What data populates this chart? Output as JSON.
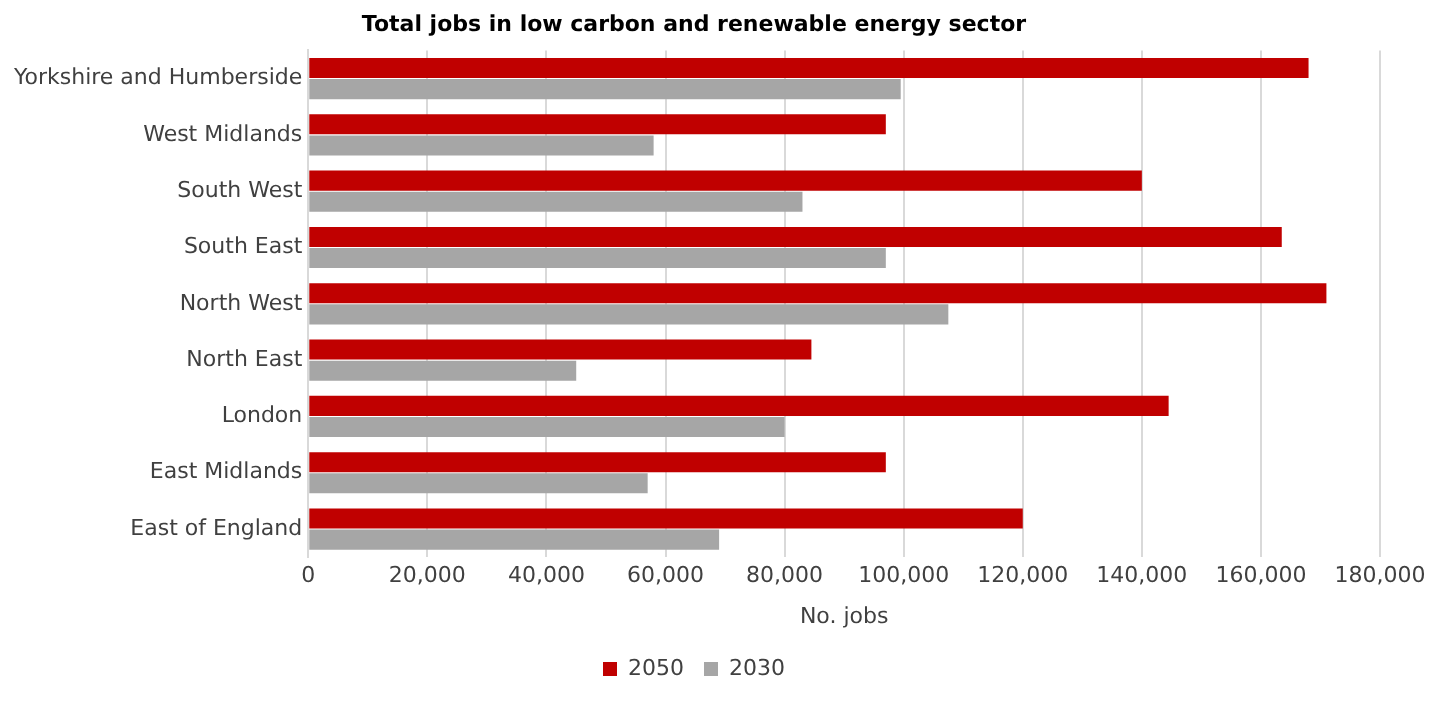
{
  "chart_data": {
    "type": "bar",
    "orientation": "horizontal",
    "title": "Total jobs in low carbon and renewable energy sector",
    "xlabel": "No. jobs",
    "categories": [
      "Yorkshire and Humberside",
      "West Midlands",
      "South West",
      "South East",
      "North West",
      "North East",
      "London",
      "East Midlands",
      "East of England"
    ],
    "series": [
      {
        "name": "2050",
        "color": "#c00000",
        "values": [
          168000,
          97000,
          140000,
          163500,
          171000,
          84500,
          144500,
          97000,
          120000
        ]
      },
      {
        "name": "2030",
        "color": "#a6a6a6",
        "values": [
          99500,
          58000,
          83000,
          97000,
          107500,
          45000,
          80000,
          57000,
          69000
        ]
      }
    ],
    "xlim": [
      0,
      180000
    ],
    "xticks": [
      {
        "value": 0,
        "label": "0"
      },
      {
        "value": 20000,
        "label": "20,000"
      },
      {
        "value": 40000,
        "label": "40,000"
      },
      {
        "value": 60000,
        "label": "60,000"
      },
      {
        "value": 80000,
        "label": "80,000"
      },
      {
        "value": 100000,
        "label": "100,000"
      },
      {
        "value": 120000,
        "label": "120,000"
      },
      {
        "value": 140000,
        "label": "140,000"
      },
      {
        "value": 160000,
        "label": "160,000"
      },
      {
        "value": 180000,
        "label": "180,000"
      }
    ],
    "grid": "x",
    "legend": "bottom"
  }
}
